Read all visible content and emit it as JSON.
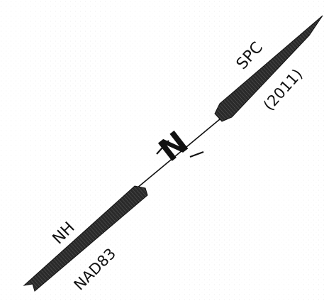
{
  "north_arrow": {
    "north_letter": "N",
    "upper_label_line1": "SPC",
    "upper_label_line2": "(2011)",
    "lower_label_line1": "NH",
    "lower_label_line2": "NAD83",
    "ink_color": "#111111",
    "background_color": "#ffffff"
  }
}
